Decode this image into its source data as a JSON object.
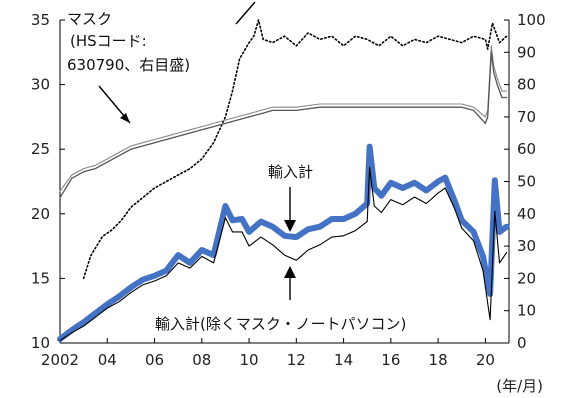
{
  "chart_data": {
    "type": "line",
    "title": "",
    "xlabel": "",
    "x_unit_label": "(年/月)",
    "x_tick_labels": [
      "2002",
      "04",
      "06",
      "08",
      "10",
      "12",
      "14",
      "16",
      "18",
      "20"
    ],
    "x_ticks": [
      2002,
      2004,
      2006,
      2008,
      2010,
      2012,
      2014,
      2016,
      2018,
      2020
    ],
    "xlim": [
      2002,
      2021
    ],
    "ylim_left": [
      10,
      35
    ],
    "y_ticks_left": [
      10,
      15,
      20,
      25,
      30,
      35
    ],
    "ylim_right": [
      0,
      100
    ],
    "y_ticks_right": [
      0,
      10,
      20,
      30,
      40,
      50,
      60,
      70,
      80,
      90,
      100
    ],
    "grid": false,
    "annotations": {
      "mask_label": [
        "マスク",
        "(HSコード:",
        "630790、右目盛)"
      ],
      "total_label": "輸入計",
      "excl_label": "輸入計(除くマスク・ノートパソコン)"
    },
    "series": [
      {
        "key": "total",
        "axis": "left",
        "color": "#4472c4",
        "x": [
          2002,
          2002.5,
          2003,
          2003.5,
          2004,
          2004.5,
          2005,
          2005.5,
          2006,
          2006.5,
          2007,
          2007.5,
          2008,
          2008.5,
          2009,
          2009.3,
          2009.7,
          2010,
          2010.5,
          2011,
          2011.5,
          2012,
          2012.5,
          2013,
          2013.5,
          2014,
          2014.5,
          2015,
          2015.1,
          2015.3,
          2015.6,
          2016,
          2016.5,
          2017,
          2017.5,
          2018,
          2018.3,
          2018.7,
          2019,
          2019.5,
          2019.9,
          2020.2,
          2020.4,
          2020.6,
          2020.9
        ],
        "values": [
          10.3,
          11.0,
          11.6,
          12.3,
          13.0,
          13.6,
          14.3,
          14.9,
          15.2,
          15.6,
          16.8,
          16.2,
          17.2,
          16.8,
          20.6,
          19.5,
          19.6,
          18.6,
          19.4,
          19.0,
          18.3,
          18.2,
          18.8,
          19.0,
          19.6,
          19.6,
          20.0,
          20.8,
          25.2,
          22.0,
          21.4,
          22.4,
          22.0,
          22.4,
          21.8,
          22.5,
          22.8,
          21.0,
          19.5,
          18.6,
          16.7,
          13.8,
          22.6,
          18.6,
          19.0
        ]
      },
      {
        "key": "excl",
        "axis": "left",
        "color": "#000000",
        "x": [
          2002,
          2002.5,
          2003,
          2003.5,
          2004,
          2004.5,
          2005,
          2005.5,
          2006,
          2006.5,
          2007,
          2007.5,
          2008,
          2008.5,
          2009,
          2009.3,
          2009.7,
          2010,
          2010.5,
          2011,
          2011.5,
          2012,
          2012.5,
          2013,
          2013.5,
          2014,
          2014.5,
          2015,
          2015.1,
          2015.3,
          2015.6,
          2016,
          2016.5,
          2017,
          2017.5,
          2018,
          2018.3,
          2018.7,
          2019,
          2019.5,
          2019.9,
          2020.2,
          2020.4,
          2020.6,
          2020.9
        ],
        "values": [
          10.2,
          10.8,
          11.3,
          12.0,
          12.7,
          13.2,
          13.9,
          14.5,
          14.8,
          15.2,
          16.2,
          15.8,
          16.7,
          16.2,
          19.7,
          18.6,
          18.6,
          17.5,
          18.2,
          17.6,
          16.8,
          16.4,
          17.2,
          17.6,
          18.2,
          18.3,
          18.7,
          19.4,
          23.6,
          20.6,
          20.1,
          21.1,
          20.7,
          21.3,
          20.8,
          21.6,
          22.0,
          20.4,
          18.9,
          17.9,
          15.6,
          11.8,
          20.2,
          16.2,
          17.0
        ]
      },
      {
        "key": "mask",
        "axis": "right",
        "color": "#555555",
        "x": [
          2002,
          2002.5,
          2003,
          2003.5,
          2004,
          2004.5,
          2005,
          2005.5,
          2006,
          2006.5,
          2007,
          2007.5,
          2008,
          2008.5,
          2009,
          2009.5,
          2010,
          2010.5,
          2011,
          2011.5,
          2012,
          2013,
          2014,
          2015,
          2016,
          2017,
          2018,
          2019,
          2019.5,
          2020,
          2020.1,
          2020.25,
          2020.35,
          2020.5,
          2020.7,
          2020.9
        ],
        "values": [
          45,
          51,
          53,
          54,
          56,
          58,
          60,
          61,
          62,
          63,
          64,
          65,
          66,
          67,
          68,
          69,
          70,
          71,
          72,
          72,
          72,
          73,
          73,
          73,
          73,
          73,
          73,
          73,
          72,
          68,
          70,
          90,
          84,
          80,
          76,
          76
        ]
      },
      {
        "key": "mask_upper",
        "axis": "right",
        "color": "#888888",
        "x": [
          2002,
          2002.5,
          2003,
          2003.5,
          2004,
          2004.5,
          2005,
          2005.5,
          2006,
          2006.5,
          2007,
          2007.5,
          2008,
          2008.5,
          2009,
          2009.5,
          2010,
          2010.5,
          2011,
          2011.5,
          2012,
          2013,
          2014,
          2015,
          2016,
          2017,
          2018,
          2019,
          2019.5,
          2020,
          2020.1,
          2020.25,
          2020.35,
          2020.5,
          2020.7,
          2020.9
        ],
        "values": [
          47,
          52,
          54,
          55,
          57,
          59,
          61,
          62,
          63,
          64,
          65,
          66,
          67,
          68,
          69,
          70,
          71,
          72,
          73,
          73,
          73,
          74,
          74,
          74,
          74,
          74,
          74,
          74,
          73,
          70,
          72,
          92,
          86,
          82,
          78,
          78
        ]
      },
      {
        "key": "dotted",
        "axis": "right",
        "color": "#000000",
        "dashed": true,
        "x": [
          2003,
          2003.3,
          2003.8,
          2004.2,
          2004.6,
          2005,
          2005.5,
          2006,
          2006.5,
          2007,
          2007.5,
          2008,
          2008.5,
          2009,
          2009.3,
          2009.6,
          2010,
          2010.2,
          2010.4,
          2010.6,
          2011,
          2011.5,
          2012,
          2012.5,
          2013,
          2013.5,
          2014,
          2014.5,
          2015,
          2015.5,
          2016,
          2016.5,
          2017,
          2017.5,
          2018,
          2018.5,
          2019,
          2019.5,
          2020,
          2020.1,
          2020.3,
          2020.6,
          2020.9
        ],
        "values": [
          20,
          27,
          33,
          35,
          38,
          42,
          45,
          48,
          50,
          52,
          54,
          57,
          62,
          70,
          78,
          88,
          93,
          95,
          100,
          94,
          93,
          95,
          92,
          96,
          94,
          95,
          92,
          95,
          94,
          92,
          95,
          92,
          94,
          93,
          95,
          94,
          93,
          95,
          94,
          91,
          99,
          93,
          95
        ]
      }
    ]
  }
}
